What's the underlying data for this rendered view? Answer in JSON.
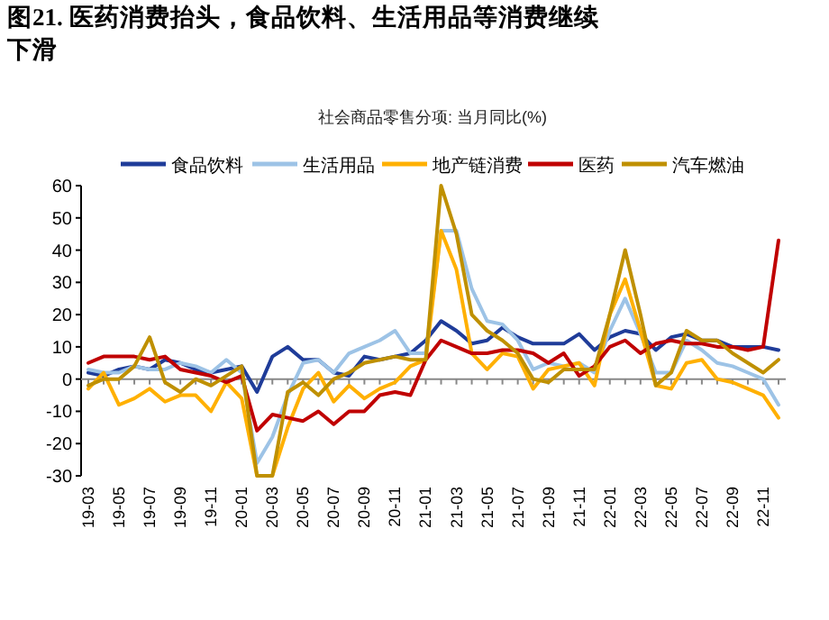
{
  "chart_data": {
    "type": "line",
    "title": "图21. 医药消费抬头，食品饮料、生活用品等消费继续下滑",
    "subtitle": "社会商品零售分项: 当月同比(%)",
    "categories": [
      "19-03",
      null,
      "19-05",
      null,
      "19-07",
      null,
      "19-09",
      null,
      "19-11",
      null,
      "20-01",
      null,
      "20-03",
      null,
      "20-05",
      null,
      "20-07",
      null,
      "20-09",
      null,
      "20-11",
      null,
      "21-01",
      null,
      "21-03",
      null,
      "21-05",
      null,
      "21-07",
      null,
      "21-09",
      null,
      "21-11",
      null,
      "22-01",
      null,
      "22-03",
      null,
      "22-05",
      null,
      "22-07",
      null,
      "22-09",
      null,
      "22-11",
      null
    ],
    "series": [
      {
        "name": "食品饮料",
        "color": "#1f3c99",
        "values": [
          2,
          1,
          3,
          4,
          3,
          6,
          5,
          3,
          2,
          3,
          4,
          -4,
          7,
          10,
          6,
          6,
          2,
          1,
          7,
          6,
          7,
          8,
          12,
          18,
          15,
          11,
          12,
          16,
          13,
          11,
          11,
          11,
          14,
          9,
          13,
          15,
          14,
          9,
          13,
          14,
          12,
          12,
          10,
          10,
          10,
          9
        ]
      },
      {
        "name": "生活用品",
        "color": "#9dc3e6",
        "values": [
          3,
          2,
          2,
          4,
          3,
          3,
          5,
          4,
          2,
          6,
          2,
          -26,
          -18,
          -5,
          5,
          6,
          2,
          8,
          10,
          12,
          15,
          8,
          8,
          46,
          46,
          28,
          18,
          17,
          12,
          3,
          5,
          4,
          5,
          2,
          15,
          25,
          14,
          2,
          2,
          12,
          9,
          5,
          4,
          2,
          0,
          -8
        ]
      },
      {
        "name": "地产链消费",
        "color": "#ffb000",
        "values": [
          -3,
          2,
          -8,
          -6,
          -3,
          -7,
          -5,
          -5,
          -10,
          -1,
          -6,
          -30,
          -30,
          -15,
          -3,
          2,
          -7,
          -2,
          -6,
          -3,
          -1,
          4,
          6,
          46,
          34,
          8,
          3,
          8,
          7,
          -3,
          3,
          4,
          5,
          -2,
          20,
          31,
          15,
          -2,
          -3,
          5,
          6,
          0,
          -1,
          -3,
          -5,
          -12
        ]
      },
      {
        "name": "医药",
        "color": "#c00000",
        "values": [
          5,
          7,
          7,
          7,
          6,
          7,
          3,
          2,
          1,
          -1,
          1,
          -16,
          -11,
          -12,
          -13,
          -10,
          -14,
          -10,
          -10,
          -5,
          -4,
          -5,
          6,
          12,
          10,
          8,
          8,
          9,
          9,
          8,
          5,
          8,
          1,
          4,
          10,
          12,
          8,
          11,
          12,
          11,
          11,
          10,
          10,
          9,
          10,
          43
        ]
      },
      {
        "name": "汽车燃油",
        "color": "#bf9000",
        "values": [
          -2,
          0,
          0,
          4,
          13,
          -1,
          -4,
          0,
          -2,
          1,
          4,
          -30,
          -30,
          -4,
          -1,
          -5,
          0,
          2,
          5,
          6,
          7,
          6,
          6,
          60,
          45,
          20,
          15,
          12,
          8,
          0,
          -1,
          3,
          3,
          3,
          20,
          40,
          20,
          -2,
          2,
          15,
          12,
          12,
          8,
          5,
          2,
          6
        ]
      }
    ],
    "ylim": [
      -30,
      60
    ],
    "yticks": [
      -30,
      -20,
      -10,
      0,
      10,
      20,
      30,
      40,
      50,
      60
    ],
    "legend": "top"
  }
}
